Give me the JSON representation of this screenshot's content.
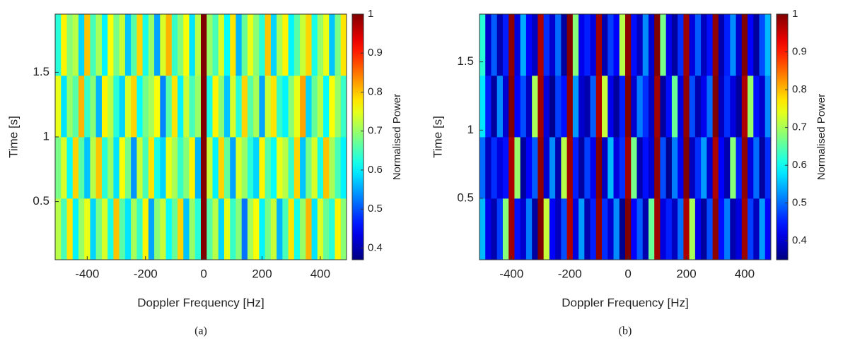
{
  "chart_data": [
    {
      "type": "heatmap",
      "caption": "(a)",
      "x_label": "Doppler Frequency [Hz]",
      "y_label": "Time [s]",
      "colorbar_label": "Normalised Power",
      "colormap": "jet",
      "xlim": [
        -510,
        490
      ],
      "xticks": [
        -400,
        -200,
        0,
        200,
        400
      ],
      "ylim": [
        0.05,
        1.95
      ],
      "yticks": [
        0.5,
        1,
        1.5
      ],
      "clim": [
        0.37,
        1
      ],
      "cticks": [
        0.4,
        0.5,
        0.6,
        0.7,
        0.8,
        0.9,
        1
      ],
      "x": [
        -500,
        -480,
        -460,
        -440,
        -420,
        -400,
        -380,
        -360,
        -340,
        -320,
        -300,
        -280,
        -260,
        -240,
        -220,
        -200,
        -180,
        -160,
        -140,
        -120,
        -100,
        -80,
        -60,
        -40,
        -20,
        0,
        20,
        40,
        60,
        80,
        100,
        120,
        140,
        160,
        180,
        200,
        220,
        240,
        260,
        280,
        300,
        320,
        340,
        360,
        380,
        400,
        420,
        440,
        460,
        480
      ],
      "y": [
        0.2875,
        0.7625,
        1.2375,
        1.7125
      ],
      "z": [
        [
          0.72,
          0.65,
          0.78,
          0.6,
          0.7,
          0.75,
          0.58,
          0.68,
          0.74,
          0.62,
          0.8,
          0.66,
          0.59,
          0.71,
          0.64,
          0.77,
          0.55,
          0.69,
          0.73,
          0.61,
          0.67,
          0.79,
          0.57,
          0.7,
          0.63,
          1,
          0.66,
          0.72,
          0.58,
          0.75,
          0.64,
          0.69,
          0.52,
          0.71,
          0.76,
          0.6,
          0.68,
          0.73,
          0.56,
          0.65,
          0.78,
          0.62,
          0.7,
          0.81,
          0.59,
          0.74,
          0.67,
          0.63,
          0.77,
          0.69
        ],
        [
          0.68,
          0.74,
          0.61,
          0.79,
          0.66,
          0.57,
          0.72,
          0.8,
          0.63,
          0.7,
          0.59,
          0.76,
          0.68,
          0.54,
          0.73,
          0.65,
          0.78,
          0.62,
          0.58,
          0.75,
          0.71,
          0.64,
          0.69,
          0.77,
          0.56,
          1,
          0.73,
          0.6,
          0.79,
          0.67,
          0.55,
          0.74,
          0.7,
          0.63,
          0.58,
          0.77,
          0.66,
          0.61,
          0.75,
          0.72,
          0.64,
          0.79,
          0.57,
          0.68,
          0.74,
          0.62,
          0.8,
          0.71,
          0.65,
          0.6
        ],
        [
          0.75,
          0.59,
          0.7,
          0.66,
          0.81,
          0.64,
          0.69,
          0.56,
          0.77,
          0.72,
          0.63,
          0.58,
          0.74,
          0.79,
          0.61,
          0.68,
          0.71,
          0.76,
          0.53,
          0.66,
          0.78,
          0.6,
          0.73,
          0.65,
          0.7,
          1,
          0.62,
          0.77,
          0.69,
          0.57,
          0.74,
          0.63,
          0.79,
          0.66,
          0.71,
          0.55,
          0.73,
          0.78,
          0.64,
          0.6,
          0.69,
          0.75,
          0.82,
          0.58,
          0.67,
          0.72,
          0.61,
          0.76,
          0.7,
          0.64
        ],
        [
          0.63,
          0.77,
          0.69,
          0.72,
          0.58,
          0.8,
          0.65,
          0.71,
          0.6,
          0.76,
          0.68,
          0.73,
          0.57,
          0.66,
          0.79,
          0.62,
          0.7,
          0.55,
          0.74,
          0.81,
          0.64,
          0.69,
          0.76,
          0.59,
          0.72,
          1,
          0.7,
          0.65,
          0.74,
          0.61,
          0.78,
          0.56,
          0.67,
          0.75,
          0.69,
          0.63,
          0.8,
          0.58,
          0.71,
          0.77,
          0.6,
          0.66,
          0.73,
          0.79,
          0.62,
          0.7,
          0.75,
          0.57,
          0.68,
          0.78
        ]
      ]
    },
    {
      "type": "heatmap",
      "caption": "(b)",
      "x_label": "Doppler Frequency [Hz]",
      "y_label": "Time [s]",
      "colorbar_label": "Normalised Power",
      "colormap": "jet",
      "xlim": [
        -510,
        490
      ],
      "xticks": [
        -400,
        -200,
        0,
        200,
        400
      ],
      "ylim": [
        0.05,
        1.85
      ],
      "yticks": [
        0.5,
        1,
        1.5
      ],
      "clim": [
        0.35,
        1
      ],
      "cticks": [
        0.4,
        0.5,
        0.6,
        0.7,
        0.8,
        0.9,
        1
      ],
      "x": [
        -500,
        -480,
        -460,
        -440,
        -420,
        -400,
        -380,
        -360,
        -340,
        -320,
        -300,
        -280,
        -260,
        -240,
        -220,
        -200,
        -180,
        -160,
        -140,
        -120,
        -100,
        -80,
        -60,
        -40,
        -20,
        0,
        20,
        40,
        60,
        80,
        100,
        120,
        140,
        160,
        180,
        200,
        220,
        240,
        260,
        280,
        300,
        320,
        340,
        360,
        380,
        400,
        420,
        440,
        460,
        480
      ],
      "y": [
        0.275,
        0.725,
        1.175,
        1.625
      ],
      "z": [
        [
          0.55,
          0.42,
          0.38,
          0.47,
          0.68,
          0.98,
          0.44,
          0.4,
          0.51,
          0.37,
          1,
          0.72,
          0.43,
          0.39,
          0.48,
          0.97,
          0.41,
          0.53,
          0.38,
          0.45,
          0.99,
          0.46,
          0.4,
          0.52,
          0.36,
          1,
          0.43,
          0.49,
          0.38,
          0.66,
          0.98,
          0.41,
          0.45,
          0.39,
          0.5,
          0.97,
          0.7,
          0.42,
          0.37,
          0.48,
          0.99,
          0.44,
          0.51,
          0.38,
          0.41,
          0.98,
          0.47,
          0.39,
          0.53,
          0.43
        ],
        [
          0.5,
          0.39,
          0.46,
          0.41,
          0.44,
          0.97,
          0.69,
          0.37,
          0.43,
          0.49,
          0.99,
          0.4,
          0.52,
          0.38,
          0.71,
          0.98,
          0.45,
          0.37,
          0.47,
          0.42,
          1,
          0.39,
          0.55,
          0.41,
          0.46,
          0.98,
          0.67,
          0.38,
          0.44,
          0.4,
          0.99,
          0.48,
          0.36,
          0.51,
          0.42,
          1,
          0.39,
          0.46,
          0.53,
          0.4,
          0.97,
          0.43,
          0.38,
          0.68,
          0.45,
          0.99,
          0.41,
          0.5,
          0.37,
          0.46
        ],
        [
          0.58,
          0.45,
          0.37,
          0.52,
          0.4,
          1,
          0.43,
          0.48,
          0.39,
          0.7,
          0.98,
          0.41,
          0.36,
          0.47,
          0.44,
          0.99,
          0.53,
          0.4,
          0.38,
          0.49,
          0.97,
          0.72,
          0.42,
          0.37,
          0.45,
          1,
          0.4,
          0.51,
          0.46,
          0.39,
          0.98,
          0.37,
          0.44,
          0.66,
          0.41,
          0.99,
          0.48,
          0.38,
          0.42,
          0.5,
          1,
          0.39,
          0.46,
          0.41,
          0.37,
          0.97,
          0.69,
          0.44,
          0.4,
          0.52
        ],
        [
          0.62,
          0.4,
          0.49,
          0.38,
          0.45,
          0.99,
          0.41,
          0.54,
          0.43,
          0.39,
          0.97,
          0.46,
          0.4,
          0.5,
          0.37,
          1,
          0.68,
          0.42,
          0.45,
          0.41,
          0.98,
          0.38,
          0.47,
          0.43,
          0.71,
          0.99,
          0.44,
          0.39,
          0.52,
          0.4,
          1,
          0.67,
          0.42,
          0.37,
          0.46,
          0.98,
          0.41,
          0.49,
          0.39,
          0.44,
          0.99,
          0.38,
          0.45,
          0.52,
          0.4,
          1,
          0.43,
          0.37,
          0.48,
          0.55
        ]
      ]
    }
  ]
}
